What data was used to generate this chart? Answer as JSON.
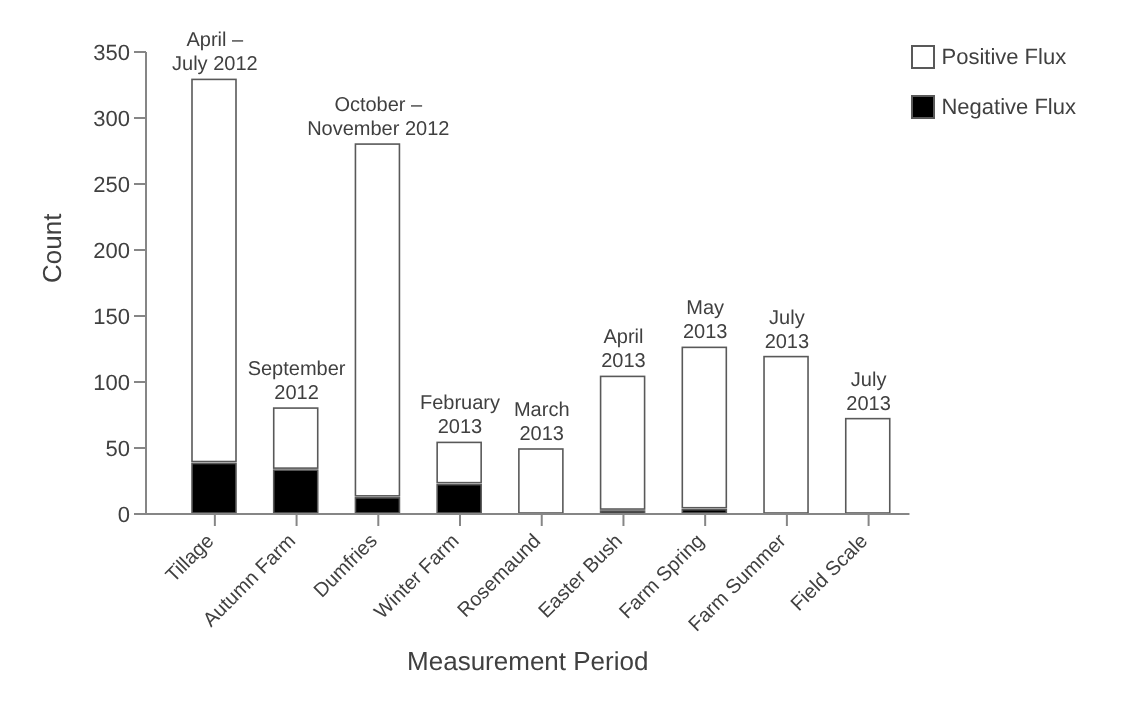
{
  "chart_data": {
    "type": "bar",
    "stacked": true,
    "xlabel": "Measurement Period",
    "ylabel": "Count",
    "categories": [
      "Tillage",
      "Autumn Farm",
      "Dumfries",
      "Winter Farm",
      "Rosemaund",
      "Easter Bush",
      "Farm Spring",
      "Farm Summer",
      "Field Scale"
    ],
    "series": [
      {
        "name": "Negative Flux",
        "color": "#000000",
        "values": [
          39,
          34,
          13,
          23,
          0,
          3,
          4,
          0,
          0
        ]
      },
      {
        "name": "Positive Flux",
        "color": "#ffffff",
        "values": [
          291,
          47,
          268,
          32,
          50,
          102,
          123,
          120,
          73
        ]
      }
    ],
    "ylim": [
      0,
      350
    ],
    "yticks": [
      0,
      50,
      100,
      150,
      200,
      250,
      300,
      350
    ],
    "grid": false,
    "legend": "top right",
    "annotations": [
      {
        "text": "April –\nJuly 2012",
        "x": "Tillage",
        "y": 330
      },
      {
        "text": "September\n2012",
        "x": "Autumn Farm",
        "y": 81
      },
      {
        "text": "October –\nNovember 2012",
        "x": "Dumfries",
        "y": 281
      },
      {
        "text": "February\n2013",
        "x": "Winter Farm",
        "y": 55
      },
      {
        "text": "March\n2013",
        "x": "Rosemaund",
        "y": 50
      },
      {
        "text": "April\n2013",
        "x": "Easter Bush",
        "y": 105
      },
      {
        "text": "May\n2013",
        "x": "Farm Spring",
        "y": 127
      },
      {
        "text": "July\n2013",
        "x": "Farm Summer",
        "y": 120
      },
      {
        "text": "July\n2013",
        "x": "Field Scale",
        "y": 73
      }
    ]
  }
}
